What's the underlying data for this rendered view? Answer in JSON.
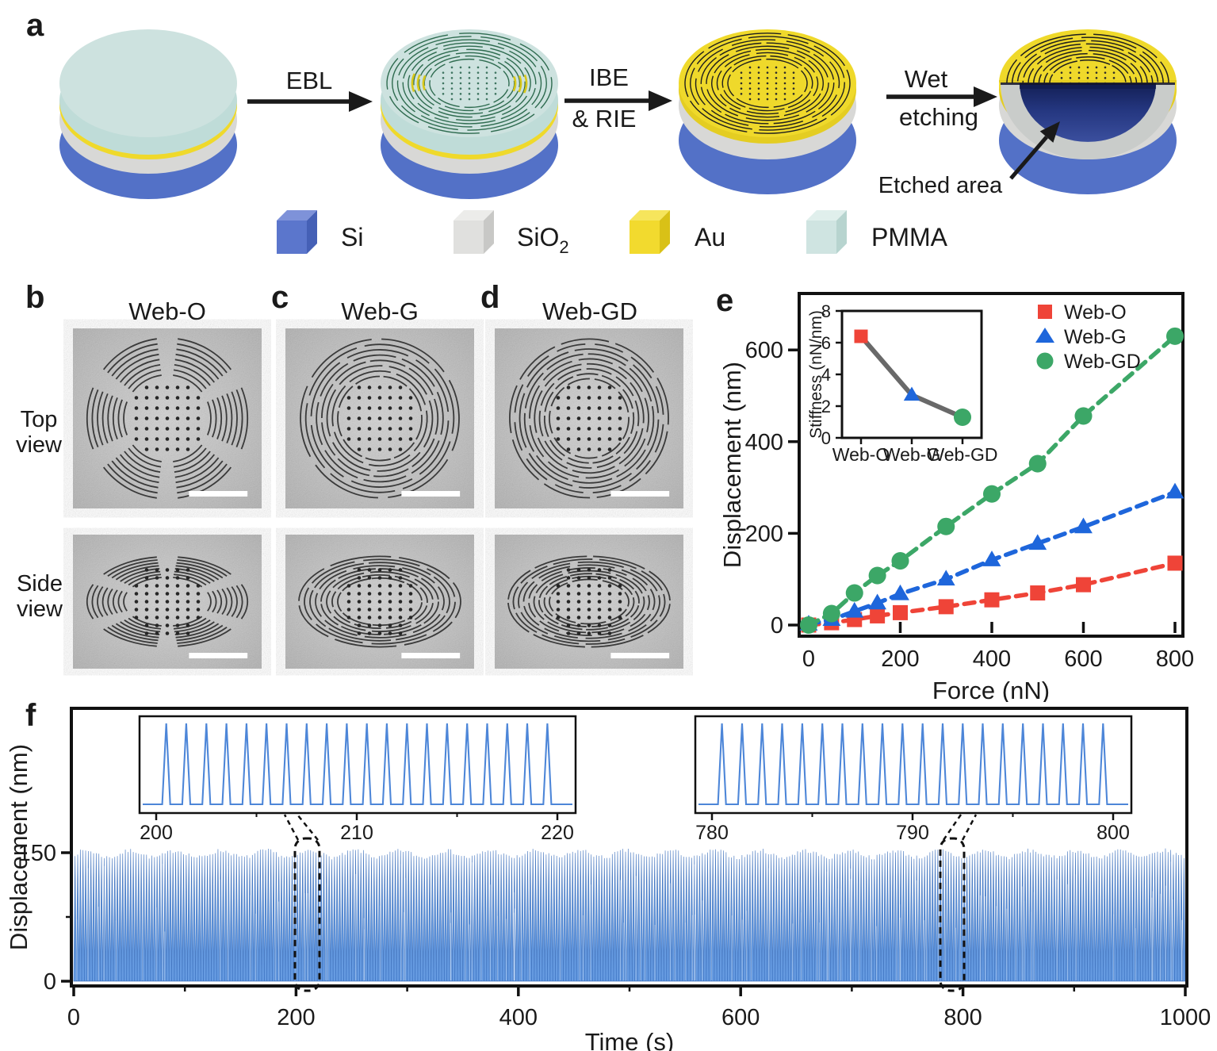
{
  "figure": {
    "panel_a": {
      "label": "a",
      "steps": [
        [
          "EBL"
        ],
        [
          "IBE",
          "& RIE"
        ],
        [
          "Wet",
          "etching"
        ]
      ],
      "annotation": "Etched area",
      "legend": [
        {
          "label": "Si",
          "front": "#5B76CC",
          "top": "#7E92D9",
          "side": "#4560B6"
        },
        {
          "label": "SiO",
          "sub": "2",
          "front": "#E0E0DE",
          "top": "#ECECEA",
          "side": "#C8C8C6"
        },
        {
          "label": "Au",
          "front": "#F2DA2E",
          "top": "#F6E55C",
          "side": "#D9C117"
        },
        {
          "label": "PMMA",
          "front": "#CFE4E1",
          "top": "#E0EFEC",
          "side": "#B7D4CF"
        }
      ],
      "layer_colors": {
        "si": "#5371C7",
        "sio2": "#D8D8D6",
        "au": "#EFD92B",
        "au_side": "#E4CD22",
        "pmma": "#CDE2DF",
        "pmma_side": "#BFDCD8",
        "web_green": "#2E6B4F",
        "web_black": "#1E1E1E",
        "web_yellow": "#D8C71A",
        "dot_teal": "#3E7460",
        "cavity_top": "#131F55",
        "cavity_mid": "#24367F",
        "cavity_bottom": "#3B4F9E"
      }
    },
    "sem_panels": [
      {
        "label": "b",
        "title": "Web-O",
        "style": "sectored"
      },
      {
        "label": "c",
        "title": "Web-G",
        "style": "segmented"
      },
      {
        "label": "d",
        "title": "Web-GD",
        "style": "segmented-dense"
      }
    ],
    "row_labels": {
      "top": [
        "Top",
        "view"
      ],
      "side": [
        "Side",
        "view"
      ]
    },
    "panel_e_label": "e",
    "panel_f_label": "f"
  },
  "chart_data": [
    {
      "id": "force_displacement",
      "type": "scatter",
      "xlabel": "Force (nN)",
      "ylabel": "Displacement (nm)",
      "xticks": [
        0,
        200,
        400,
        600,
        800
      ],
      "yticks": [
        0,
        200,
        400,
        600
      ],
      "xlim": [
        -20,
        820
      ],
      "ylim": [
        -25,
        730
      ],
      "grid": false,
      "legend_position": "top-right",
      "line_style": "dashed",
      "x": [
        0,
        50,
        100,
        150,
        200,
        300,
        400,
        500,
        600,
        800
      ],
      "series": [
        {
          "name": "Web-O",
          "marker": "square",
          "color": "#EF4438",
          "values": [
            0,
            5,
            12,
            20,
            27,
            40,
            55,
            70,
            88,
            135
          ]
        },
        {
          "name": "Web-G",
          "marker": "triangle",
          "color": "#1E66DB",
          "values": [
            2,
            12,
            30,
            48,
            68,
            100,
            142,
            178,
            214,
            290
          ]
        },
        {
          "name": "Web-GD",
          "marker": "circle",
          "color": "#3CA767",
          "values": [
            0,
            25,
            70,
            108,
            140,
            215,
            286,
            352,
            456,
            630
          ]
        }
      ]
    },
    {
      "id": "stiffness_inset",
      "type": "line",
      "ylabel": "Stiffness (nN/nm)",
      "yticks": [
        0,
        2,
        4,
        6,
        8
      ],
      "ylim": [
        0,
        8
      ],
      "categories": [
        "Web-O",
        "Web-G",
        "Web-GD"
      ],
      "values": [
        6.4,
        2.7,
        1.3
      ],
      "line_color": "#696969",
      "markers": [
        "square",
        "triangle",
        "circle"
      ],
      "marker_colors": [
        "#EF4438",
        "#1E66DB",
        "#3CA767"
      ]
    },
    {
      "id": "cyclic_displacement",
      "type": "line",
      "xlabel": "Time (s)",
      "ylabel": "Displacement (nm)",
      "xticks": [
        0,
        200,
        400,
        600,
        800,
        1000
      ],
      "yticks": [
        0,
        150
      ],
      "xlim": [
        0,
        1000
      ],
      "ylim": [
        0,
        160
      ],
      "amplitude_nm": 150,
      "cycle_period_s": 1,
      "line_color": "#4D86D8",
      "insets": [
        {
          "xticks": [
            200,
            210,
            220
          ],
          "xlim": [
            199.2,
            220.9
          ]
        },
        {
          "xticks": [
            780,
            790,
            800
          ],
          "xlim": [
            779.2,
            800.9
          ]
        }
      ],
      "zoom_windows_s": [
        [
          200,
          220
        ],
        [
          780,
          800
        ]
      ]
    }
  ]
}
